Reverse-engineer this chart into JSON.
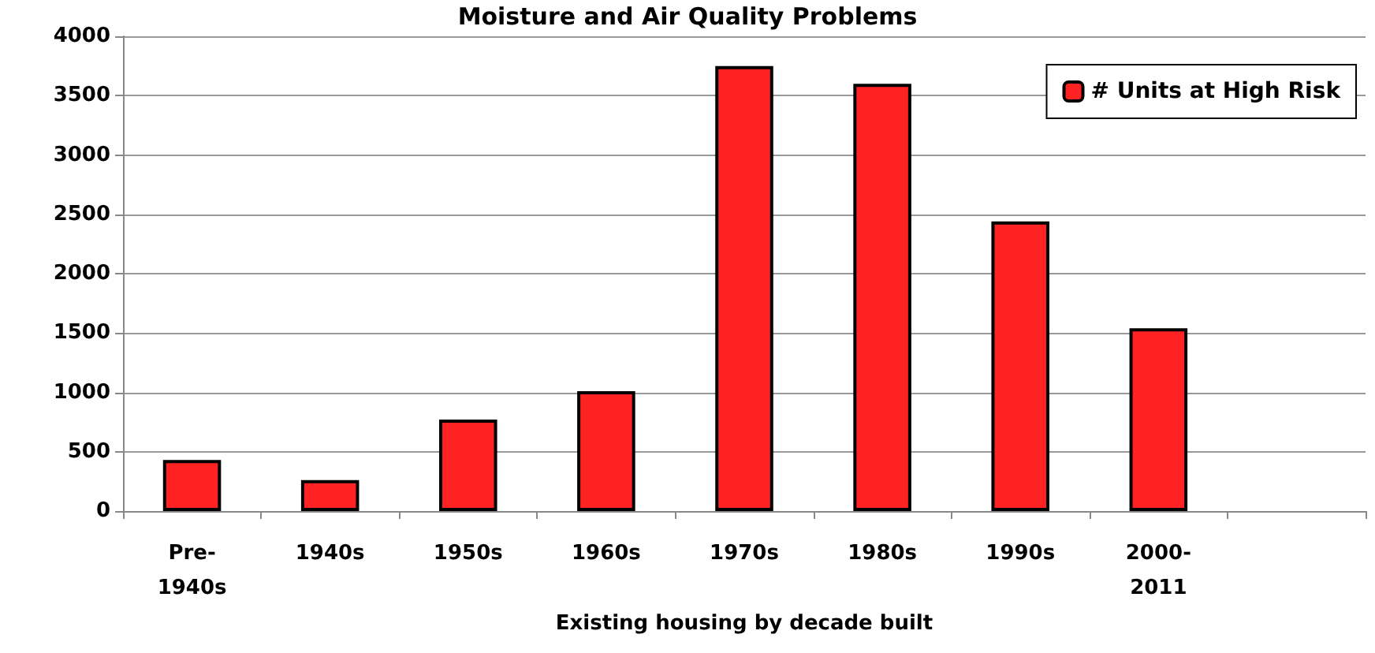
{
  "chart_data": {
    "type": "bar",
    "title": "Moisture and Air Quality Problems",
    "xlabel": "Existing housing by decade built",
    "categories": [
      "Pre-1940s",
      "1940s",
      "1950s",
      "1960s",
      "1970s",
      "1980s",
      "1990s",
      "2000-2011",
      null
    ],
    "series": [
      {
        "name": "# Units at High Risk",
        "color": "#ff2222",
        "values": [
          430,
          260,
          770,
          1010,
          3750,
          3600,
          2440,
          1540,
          null
        ]
      }
    ],
    "ylim": [
      0,
      4000
    ],
    "yticks": [
      0,
      500,
      1000,
      1500,
      2000,
      2500,
      3000,
      3500,
      4000
    ],
    "grid": "y",
    "legend": "top right"
  }
}
